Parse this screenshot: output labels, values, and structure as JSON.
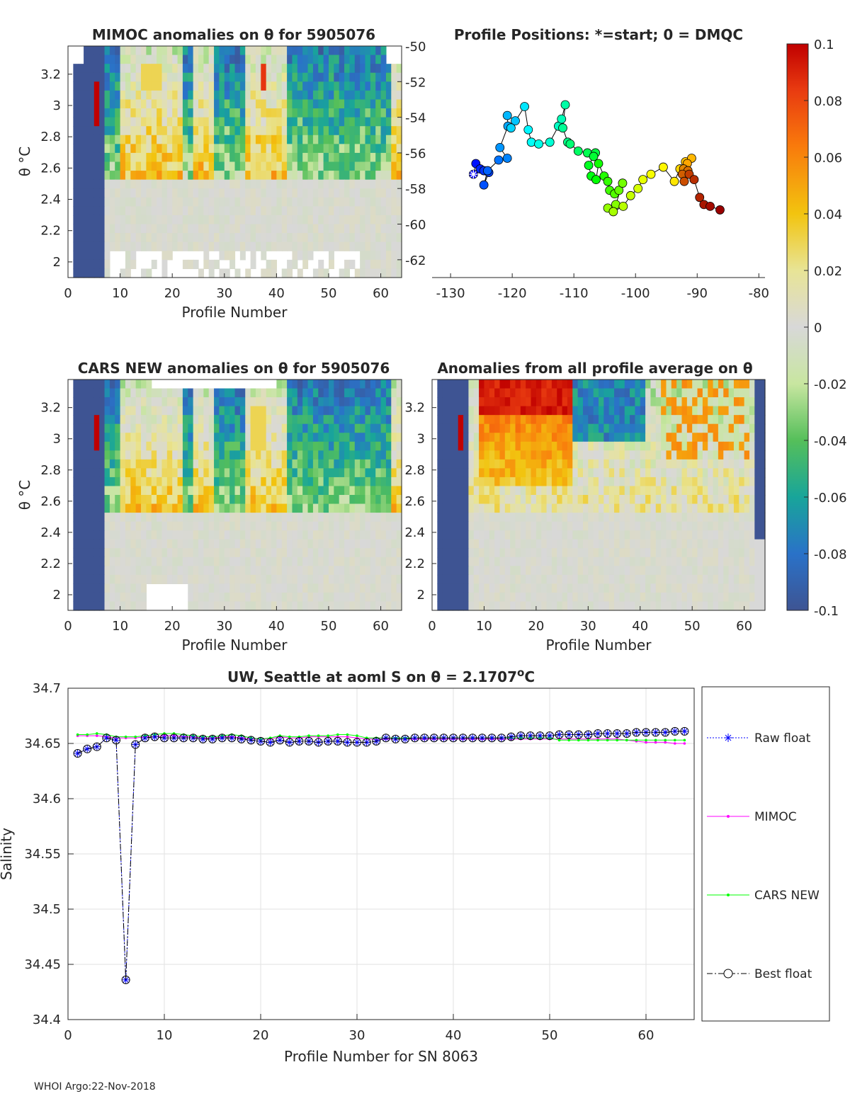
{
  "chart_data": [
    {
      "type": "heatmap",
      "id": "mimoc",
      "title": "MIMOC anomalies on θ  for 5905076",
      "xlabel": "Profile Number",
      "ylabel": "θ °C",
      "xlim": [
        0,
        64
      ],
      "ylim": [
        1.9,
        3.38
      ],
      "xticks": [
        0,
        10,
        20,
        30,
        40,
        50,
        60
      ],
      "yticks": [
        2,
        2.2,
        2.4,
        2.6,
        2.8,
        3,
        3.2
      ],
      "ytick_labels": [
        "2",
        "2.2",
        "2.4",
        "2.6",
        "2.8",
        "3",
        "3.2"
      ],
      "right_yticks": [
        -50,
        -52,
        -54,
        -56,
        -58,
        -60,
        -62
      ],
      "right_ylim": [
        -50,
        -63
      ]
    },
    {
      "type": "scatter",
      "id": "positions",
      "title": "Profile Positions: *=start; 0 = DMQC",
      "xlim": [
        -133,
        -79
      ],
      "ylim": [
        -63,
        -50
      ],
      "xticks": [
        -130,
        -120,
        -110,
        -100,
        -90,
        -80
      ],
      "lon": [
        -126.3,
        -125.9,
        -125.2,
        -124.6,
        -123.8,
        -124.6,
        -124.0,
        -122.2,
        -120.8,
        -122.0,
        -120.7,
        -120.8,
        -119.5,
        -120.2,
        -118.0,
        -117.4,
        -116.9,
        -115.7,
        -113.9,
        -112.5,
        -112.0,
        -111.4,
        -111.8,
        -111.0,
        -110.6,
        -109.3,
        -107.8,
        -106.5,
        -106.8,
        -107.6,
        -107.2,
        -106.4,
        -106.0,
        -105.1,
        -104.5,
        -104.2,
        -103.4,
        -102.7,
        -102.1,
        -103.2,
        -104.5,
        -103.6,
        -102.0,
        -100.8,
        -99.6,
        -98.8,
        -97.5,
        -95.5,
        -93.7,
        -92.8,
        -91.9,
        -90.9,
        -91.6,
        -92.2,
        -91.5,
        -92.4,
        -92.1,
        -91.3,
        -90.5,
        -89.6,
        -88.9,
        -87.9,
        -86.3
      ],
      "lat": [
        -57.2,
        -56.6,
        -56.9,
        -57.0,
        -57.1,
        -57.8,
        -57.0,
        -56.4,
        -56.3,
        -55.7,
        -54.5,
        -53.9,
        -54.2,
        -54.6,
        -53.4,
        -54.7,
        -55.4,
        -55.5,
        -55.4,
        -54.5,
        -54.1,
        -53.3,
        -54.6,
        -55.4,
        -55.5,
        -55.9,
        -56.0,
        -56.0,
        -56.2,
        -56.7,
        -57.3,
        -57.5,
        -56.6,
        -57.3,
        -57.6,
        -58.1,
        -58.3,
        -58.1,
        -57.7,
        -58.9,
        -59.1,
        -59.3,
        -59.0,
        -58.4,
        -58.0,
        -57.5,
        -57.2,
        -56.8,
        -57.6,
        -56.9,
        -56.5,
        -56.3,
        -56.6,
        -56.9,
        -57.0,
        -57.2,
        -57.6,
        -57.2,
        -57.5,
        -58.5,
        -58.9,
        -59.0,
        -59.2
      ]
    },
    {
      "type": "heatmap",
      "id": "cars",
      "title": "CARS NEW anomalies on θ for 5905076",
      "xlabel": "Profile Number",
      "ylabel": "θ °C",
      "xlim": [
        0,
        64
      ],
      "ylim": [
        1.9,
        3.38
      ],
      "xticks": [
        0,
        10,
        20,
        30,
        40,
        50,
        60
      ],
      "yticks": [
        2,
        2.2,
        2.4,
        2.6,
        2.8,
        3,
        3.2
      ],
      "ytick_labels": [
        "2",
        "2.2",
        "2.4",
        "2.6",
        "2.8",
        "3",
        "3.2"
      ]
    },
    {
      "type": "heatmap",
      "id": "avg",
      "title": "Anomalies from all profile average on θ",
      "xlabel": "Profile Number",
      "xlim": [
        0,
        64
      ],
      "ylim": [
        1.9,
        3.38
      ],
      "xticks": [
        0,
        10,
        20,
        30,
        40,
        50,
        60
      ],
      "yticks": [
        2,
        2.2,
        2.4,
        2.6,
        2.8,
        3,
        3.2
      ],
      "ytick_labels": [
        "2",
        "2.2",
        "2.4",
        "2.6",
        "2.8",
        "3",
        "3.2"
      ]
    },
    {
      "type": "colorbar",
      "id": "colorbar",
      "range": [
        -0.1,
        0.1
      ],
      "ticks": [
        0.1,
        0.08,
        0.06,
        0.04,
        0.02,
        0,
        -0.02,
        -0.04,
        -0.06,
        -0.08,
        -0.1
      ],
      "tick_labels": [
        "0.1",
        "0.08",
        "0.06",
        "0.04",
        "0.02",
        "0",
        "-0.02",
        "-0.04",
        "-0.06",
        "-0.08",
        "-0.1"
      ]
    },
    {
      "type": "line",
      "id": "salinity",
      "title_text": "UW, Seattle at aoml S on θ = 2.1707",
      "title_sup": "o",
      "title_unit": "C",
      "xlabel": "Profile Number for SN 8063",
      "ylabel": "Salinity",
      "xlim": [
        0,
        65
      ],
      "ylim": [
        34.4,
        34.7
      ],
      "xticks": [
        0,
        10,
        20,
        30,
        40,
        50,
        60
      ],
      "yticks": [
        34.4,
        34.45,
        34.5,
        34.55,
        34.6,
        34.65,
        34.7
      ],
      "ytick_labels": [
        "34.4",
        "34.45",
        "34.5",
        "34.55",
        "34.6",
        "34.65",
        "34.7"
      ],
      "grid": true,
      "x": [
        1,
        2,
        3,
        4,
        5,
        6,
        7,
        8,
        9,
        10,
        11,
        12,
        13,
        14,
        15,
        16,
        17,
        18,
        19,
        20,
        21,
        22,
        23,
        24,
        25,
        26,
        27,
        28,
        29,
        30,
        31,
        32,
        33,
        34,
        35,
        36,
        37,
        38,
        39,
        40,
        41,
        42,
        43,
        44,
        45,
        46,
        47,
        48,
        49,
        50,
        51,
        52,
        53,
        54,
        55,
        56,
        57,
        58,
        59,
        60,
        61,
        62,
        63,
        64
      ],
      "series": [
        {
          "name": "Raw float",
          "color": "#0000ff",
          "values": [
            34.641,
            34.645,
            34.647,
            34.655,
            34.653,
            34.436,
            34.649,
            34.655,
            34.656,
            34.655,
            34.655,
            34.655,
            34.655,
            34.654,
            34.654,
            34.655,
            34.655,
            34.654,
            34.653,
            34.652,
            34.651,
            34.653,
            34.651,
            34.652,
            34.652,
            34.651,
            34.652,
            34.652,
            34.651,
            34.651,
            34.651,
            34.652,
            34.655,
            34.654,
            34.654,
            34.655,
            34.655,
            34.655,
            34.655,
            34.655,
            34.655,
            34.655,
            34.655,
            34.655,
            34.655,
            34.656,
            34.657,
            34.657,
            34.657,
            34.657,
            34.658,
            34.658,
            34.658,
            34.658,
            34.659,
            34.659,
            34.659,
            34.659,
            34.66,
            34.66,
            34.66,
            34.66,
            34.661,
            34.661
          ]
        },
        {
          "name": "MIMOC",
          "color": "#ff00ff",
          "values": [
            34.657,
            34.657,
            34.657,
            34.656,
            34.655,
            34.655,
            34.655,
            34.656,
            34.656,
            34.657,
            34.657,
            34.656,
            34.656,
            34.655,
            34.655,
            34.656,
            34.656,
            34.655,
            34.654,
            34.654,
            34.654,
            34.656,
            34.655,
            34.655,
            34.656,
            34.656,
            34.656,
            34.656,
            34.656,
            34.655,
            34.654,
            34.654,
            34.654,
            34.654,
            34.654,
            34.654,
            34.654,
            34.654,
            34.654,
            34.654,
            34.654,
            34.654,
            34.654,
            34.654,
            34.654,
            34.654,
            34.654,
            34.654,
            34.654,
            34.654,
            34.654,
            34.654,
            34.654,
            34.654,
            34.654,
            34.654,
            34.654,
            34.653,
            34.652,
            34.651,
            34.651,
            34.651,
            34.65,
            34.65
          ]
        },
        {
          "name": "CARS NEW",
          "color": "#00ff00",
          "values": [
            34.658,
            34.658,
            34.659,
            34.658,
            34.656,
            34.656,
            34.656,
            34.657,
            34.658,
            34.659,
            34.659,
            34.658,
            34.657,
            34.656,
            34.656,
            34.657,
            34.658,
            34.657,
            34.655,
            34.654,
            34.655,
            34.657,
            34.656,
            34.656,
            34.657,
            34.657,
            34.657,
            34.658,
            34.658,
            34.657,
            34.655,
            34.655,
            34.655,
            34.655,
            34.655,
            34.655,
            34.655,
            34.655,
            34.655,
            34.655,
            34.655,
            34.655,
            34.655,
            34.655,
            34.655,
            34.655,
            34.655,
            34.655,
            34.655,
            34.655,
            34.653,
            34.653,
            34.653,
            34.653,
            34.653,
            34.653,
            34.653,
            34.653,
            34.653,
            34.653,
            34.653,
            34.653,
            34.653,
            34.653
          ]
        },
        {
          "name": "Best float",
          "color": "#000000",
          "values": [
            34.641,
            34.645,
            34.647,
            34.655,
            34.653,
            34.436,
            34.649,
            34.655,
            34.656,
            34.655,
            34.655,
            34.655,
            34.655,
            34.654,
            34.654,
            34.655,
            34.655,
            34.654,
            34.653,
            34.652,
            34.651,
            34.653,
            34.651,
            34.652,
            34.652,
            34.651,
            34.652,
            34.652,
            34.651,
            34.651,
            34.651,
            34.652,
            34.655,
            34.654,
            34.654,
            34.655,
            34.655,
            34.655,
            34.655,
            34.655,
            34.655,
            34.655,
            34.655,
            34.655,
            34.655,
            34.656,
            34.657,
            34.657,
            34.657,
            34.657,
            34.658,
            34.658,
            34.658,
            34.658,
            34.659,
            34.659,
            34.659,
            34.659,
            34.66,
            34.66,
            34.66,
            34.66,
            34.661,
            34.661
          ]
        }
      ],
      "legend": [
        "Raw float",
        "MIMOC",
        "CARS NEW",
        "Best float"
      ]
    }
  ],
  "footer": "WHOI Argo:22-Nov-2018"
}
